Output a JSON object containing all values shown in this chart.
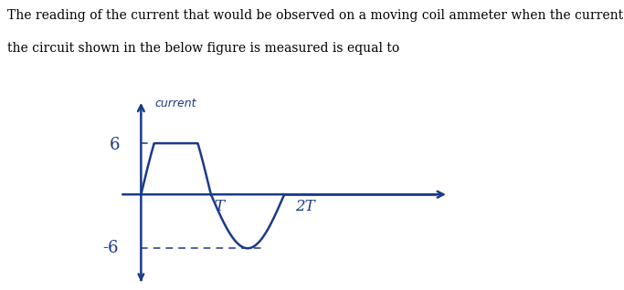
{
  "title_line1": "The reading of the current that would be observed on a moving coil ammeter when the current in",
  "title_line2": "the circuit shown in the below figure is measured is equal to",
  "ylabel": "current",
  "label_6": "6",
  "label_neg6": "-6",
  "label_T": "T",
  "label_2T": "2T",
  "font_color_title": "#000000",
  "waveform_color": "#1a3a8b",
  "bg_color": "#ffffff"
}
